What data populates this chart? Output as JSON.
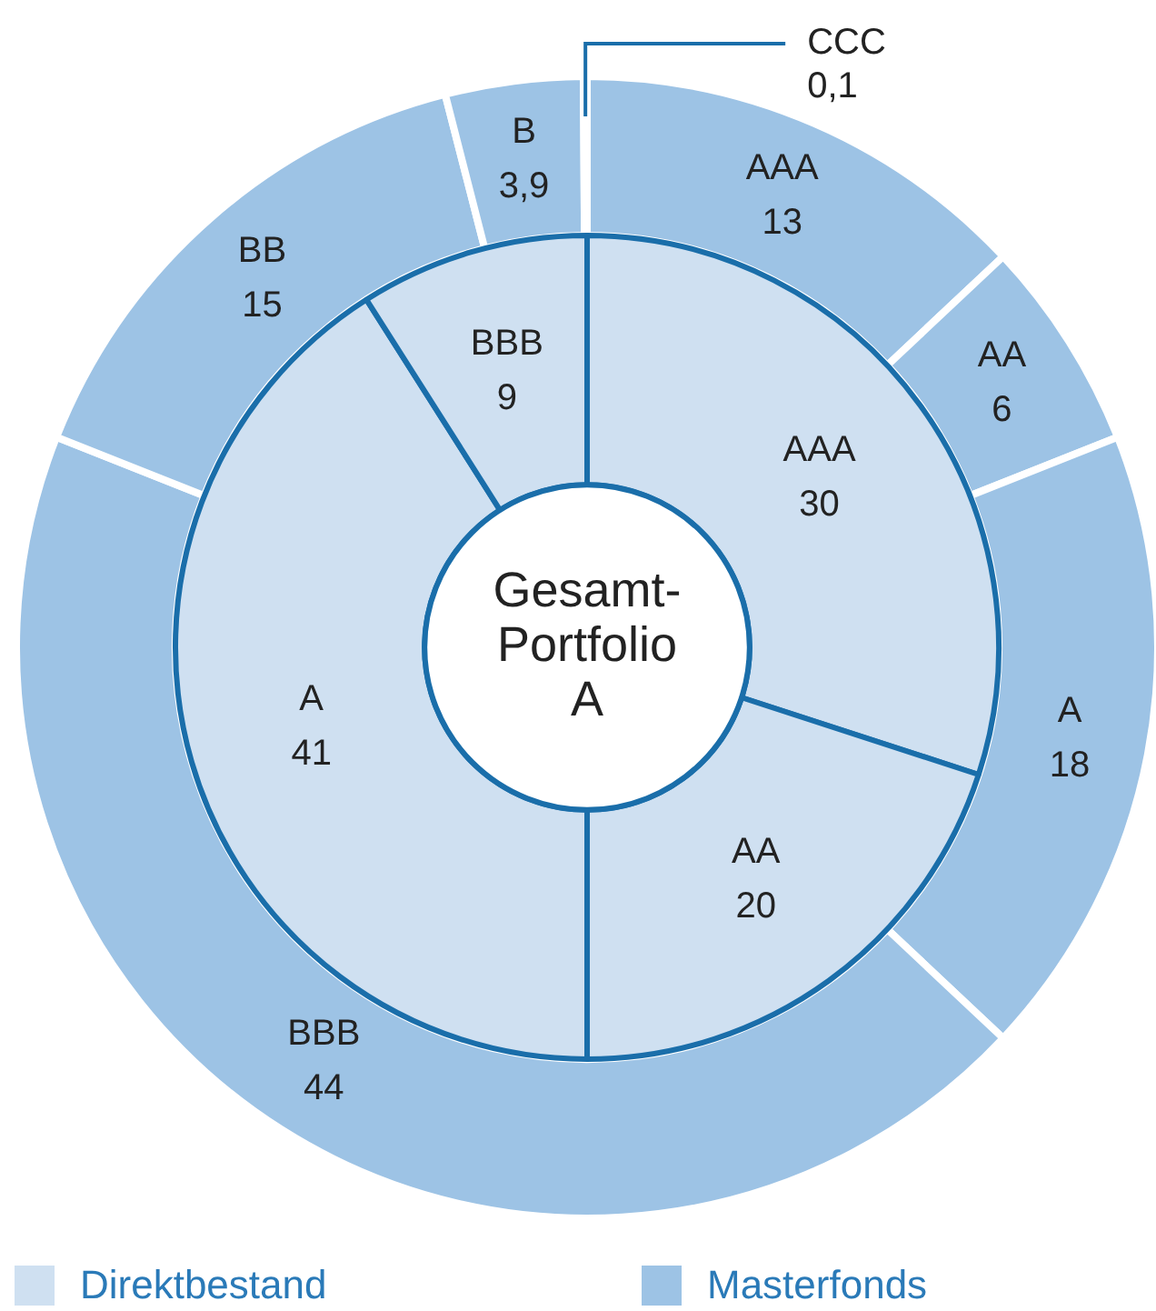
{
  "chart_data": [
    {
      "type": "donut",
      "title": "Gesamt-\nPortfolio\nA",
      "legend": "bottom",
      "categories": [
        "AAA",
        "AA",
        "A",
        "BBB"
      ],
      "series": [
        {
          "name": "Direktbestand",
          "color": "#cfe0f1",
          "values": [
            30,
            20,
            41,
            9
          ],
          "value_labels": [
            "30",
            "20",
            "41",
            "9"
          ]
        }
      ]
    },
    {
      "type": "donut",
      "legend": "bottom",
      "categories": [
        "AAA",
        "AA",
        "A",
        "BBB",
        "BB",
        "B",
        "CCC"
      ],
      "series": [
        {
          "name": "Masterfonds",
          "color": "#9dc3e5",
          "values": [
            13,
            6,
            18,
            44,
            15,
            3.9,
            0.1
          ],
          "value_labels": [
            "13",
            "6",
            "18",
            "44",
            "15",
            "3,9",
            "0,1"
          ]
        }
      ]
    }
  ]
}
